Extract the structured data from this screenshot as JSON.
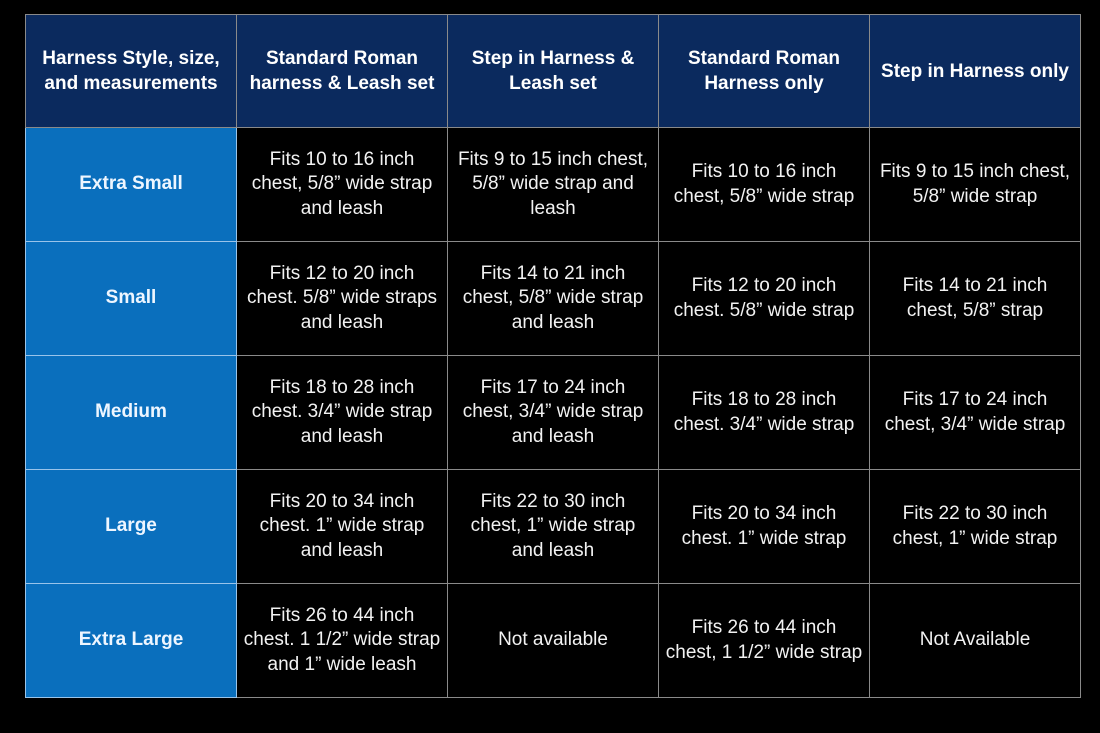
{
  "headers": [
    "Harness Style, size, and measurements",
    "Standard Roman harness & Leash set",
    "Step in Harness & Leash set",
    "Standard Roman Harness only",
    "Step in Harness only"
  ],
  "rows": [
    {
      "size": "Extra Small",
      "cells": [
        "Fits 10 to 16 inch chest, 5/8” wide strap and leash",
        "Fits 9 to 15 inch chest, 5/8” wide strap and leash",
        "Fits 10 to 16 inch chest, 5/8” wide strap",
        "Fits 9 to 15 inch chest, 5/8” wide strap"
      ]
    },
    {
      "size": "Small",
      "cells": [
        "Fits 12 to 20 inch chest. 5/8” wide straps and leash",
        "Fits 14 to 21 inch chest, 5/8” wide strap and leash",
        "Fits 12 to 20 inch chest. 5/8” wide strap",
        "Fits 14 to 21 inch chest, 5/8” strap"
      ]
    },
    {
      "size": "Medium",
      "cells": [
        "Fits 18 to 28 inch chest. 3/4” wide strap and leash",
        "Fits 17 to 24 inch chest, 3/4” wide strap and leash",
        "Fits 18 to 28 inch chest. 3/4” wide strap",
        "Fits 17 to 24 inch chest, 3/4” wide strap"
      ]
    },
    {
      "size": "Large",
      "cells": [
        "Fits 20 to 34 inch chest. 1” wide strap and leash",
        "Fits 22 to 30 inch chest, 1” wide strap and leash",
        "Fits 20 to 34 inch chest. 1” wide strap",
        "Fits 22 to 30 inch chest, 1” wide strap"
      ]
    },
    {
      "size": "Extra Large",
      "cells": [
        "Fits 26 to 44 inch chest. 1 1/2” wide strap and 1” wide leash",
        "Not available",
        "Fits 26 to 44 inch chest, 1 1/2” wide strap",
        "Not Available"
      ]
    }
  ],
  "colors": {
    "header": "#0b2a5e",
    "size_column": "#0a6fbd",
    "body": "#000000",
    "border": "#8a8a8a"
  }
}
